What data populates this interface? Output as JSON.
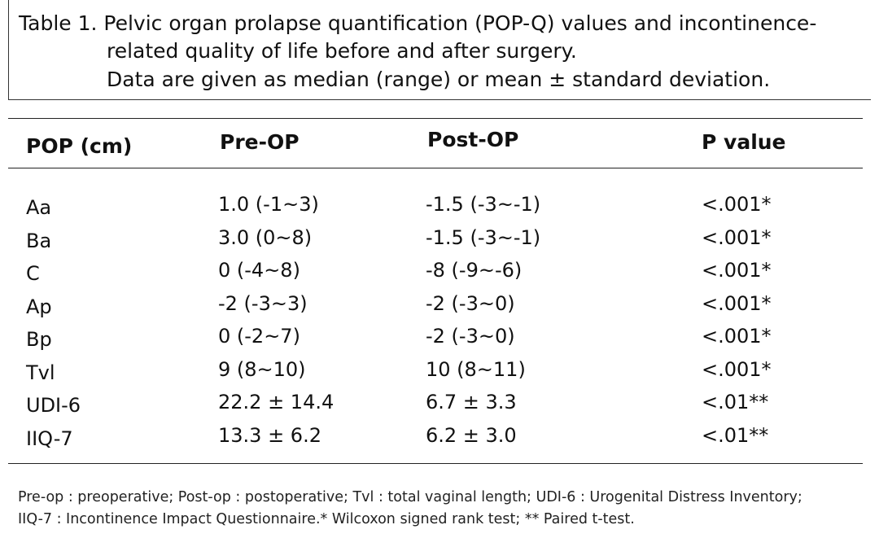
{
  "caption": {
    "line1": "Table 1. Pelvic organ prolapse quantification (POP-Q) values and incontinence-",
    "line2": "related quality of life before and after surgery.",
    "line3": "Data are given as median (range) or mean ± standard deviation."
  },
  "table": {
    "headers": [
      "POP (cm)",
      "Pre-OP",
      "Post-OP",
      "P value"
    ],
    "rows": [
      [
        "Aa",
        "1.0 (-1~3)",
        "-1.5 (-3~-1)",
        "<.001*"
      ],
      [
        "Ba",
        "3.0 (0~8)",
        "-1.5 (-3~-1)",
        "<.001*"
      ],
      [
        "C",
        "0 (-4~8)",
        "-8 (-9~-6)",
        "<.001*"
      ],
      [
        "Ap",
        "-2 (-3~3)",
        "-2 (-3~0)",
        "<.001*"
      ],
      [
        "Bp",
        "0 (-2~7)",
        "-2 (-3~0)",
        "<.001*"
      ],
      [
        "Tvl",
        "9 (8~10)",
        "10 (8~11)",
        "<.001*"
      ],
      [
        "UDI-6",
        "22.2 ± 14.4",
        "6.7 ± 3.3",
        "<.01**"
      ],
      [
        "IIQ-7",
        "13.3 ± 6.2",
        "6.2 ± 3.0",
        "<.01**"
      ]
    ]
  },
  "footnote": {
    "line1": "Pre-op : preoperative; Post-op : postoperative; Tvl : total vaginal length; UDI-6 : Urogenital Distress Inventory;",
    "line2": "IIQ-7 : Incontinence Impact Questionnaire.* Wilcoxon signed rank test; ** Paired t-test."
  }
}
